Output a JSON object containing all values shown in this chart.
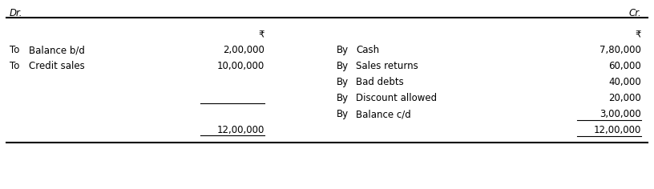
{
  "title_left": "Dr.",
  "title_right": "Cr.",
  "header_symbol": "₹",
  "left_rows": [
    {
      "prefix": "To",
      "label": "Balance b/d",
      "amount": "2,00,000",
      "underline": false,
      "blank_underline": false
    },
    {
      "prefix": "To",
      "label": "Credit sales",
      "amount": "10,00,000",
      "underline": false,
      "blank_underline": false
    },
    {
      "prefix": "",
      "label": "",
      "amount": "",
      "underline": false,
      "blank_underline": true
    },
    {
      "prefix": "",
      "label": "",
      "amount": "12,00,000",
      "underline": true,
      "blank_underline": false
    }
  ],
  "right_rows": [
    {
      "prefix": "By",
      "label": "Cash",
      "amount": "7,80,000",
      "underline": false
    },
    {
      "prefix": "By",
      "label": "Sales returns",
      "amount": "60,000",
      "underline": false
    },
    {
      "prefix": "By",
      "label": "Bad debts",
      "amount": "40,000",
      "underline": false
    },
    {
      "prefix": "By",
      "label": "Discount allowed",
      "amount": "20,000",
      "underline": false
    },
    {
      "prefix": "By",
      "label": "Balance c/d",
      "amount": "3,00,000",
      "underline": true
    },
    {
      "prefix": "",
      "label": "",
      "amount": "12,00,000",
      "underline": true
    }
  ],
  "font_size": 8.5,
  "font_family": "DejaVu Sans",
  "bg_color": "#ffffff",
  "text_color": "#000000",
  "line_color": "#000000"
}
